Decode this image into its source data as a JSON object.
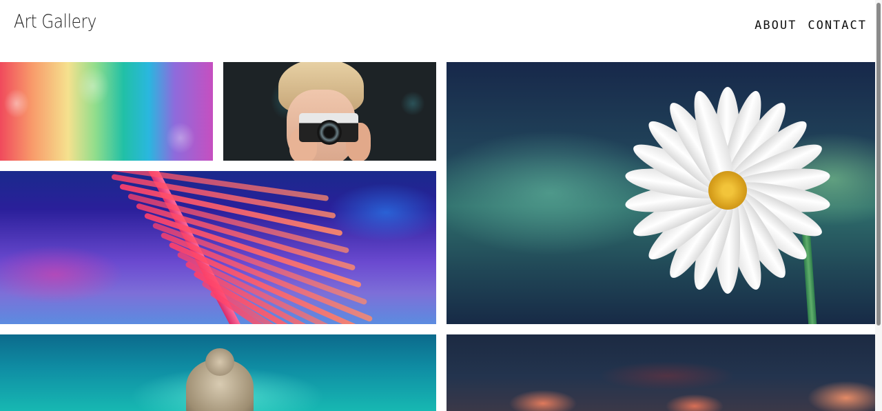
{
  "header": {
    "brand": "Art Gallery",
    "nav": [
      "ABOUT",
      "CONTACT"
    ]
  },
  "gallery": {
    "tiles": [
      {
        "subject": "rainbow-smoke"
      },
      {
        "subject": "photographer-with-camera"
      },
      {
        "subject": "white-daisy"
      },
      {
        "subject": "neon-palm-leaf"
      },
      {
        "subject": "teal-sky-tree"
      },
      {
        "subject": "dusk-clouds"
      }
    ]
  }
}
